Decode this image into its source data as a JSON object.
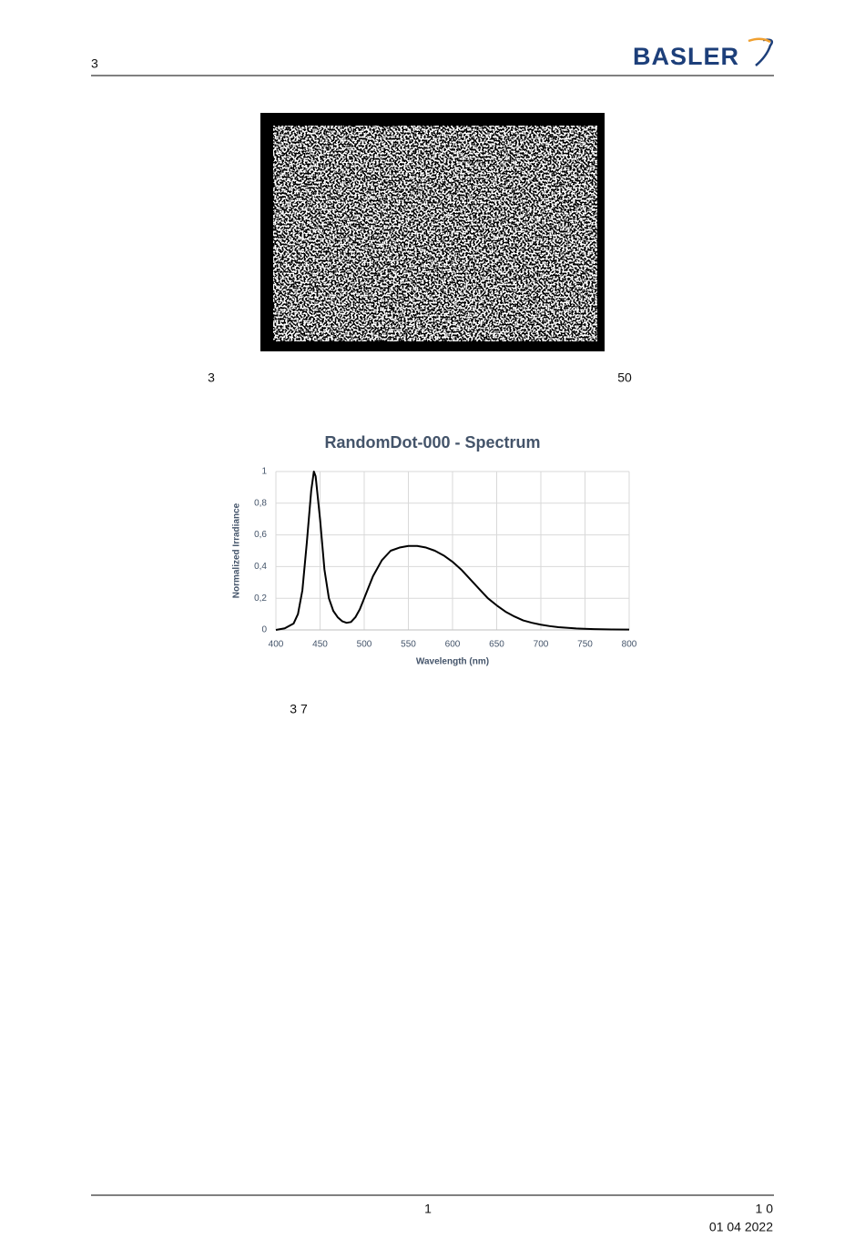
{
  "header": {
    "section": "3",
    "logo": "BASLER"
  },
  "figure1": {
    "caption_left": "3",
    "caption_right": "50"
  },
  "chart_data": {
    "type": "line",
    "title": "RandomDot-000 - Spectrum",
    "x_label": "Wavelength (nm)",
    "y_label": "Normalized Irradiance",
    "x": [
      400,
      410,
      420,
      425,
      430,
      435,
      440,
      443,
      445,
      450,
      455,
      460,
      465,
      470,
      475,
      480,
      485,
      490,
      495,
      500,
      510,
      520,
      530,
      540,
      550,
      560,
      570,
      580,
      590,
      600,
      610,
      620,
      630,
      640,
      650,
      660,
      670,
      680,
      690,
      700,
      710,
      720,
      740,
      760,
      780,
      800
    ],
    "series": [
      {
        "name": "Spectrum",
        "color": "#000000",
        "values": [
          0,
          0.01,
          0.04,
          0.1,
          0.25,
          0.55,
          0.88,
          1.0,
          0.97,
          0.7,
          0.38,
          0.2,
          0.12,
          0.08,
          0.055,
          0.045,
          0.05,
          0.08,
          0.13,
          0.2,
          0.34,
          0.44,
          0.5,
          0.52,
          0.53,
          0.53,
          0.52,
          0.5,
          0.47,
          0.43,
          0.38,
          0.32,
          0.26,
          0.2,
          0.155,
          0.115,
          0.085,
          0.06,
          0.045,
          0.033,
          0.024,
          0.017,
          0.009,
          0.005,
          0.003,
          0.002
        ]
      }
    ],
    "xlim": [
      400,
      800
    ],
    "xticks": [
      400,
      450,
      500,
      550,
      600,
      650,
      700,
      750,
      800
    ],
    "ylim": [
      0,
      1
    ],
    "yticks": [
      0,
      {
        "value": 0.2,
        "label": "0,2"
      },
      {
        "value": 0.4,
        "label": "0,4"
      },
      {
        "value": 0.6,
        "label": "0,6"
      },
      {
        "value": 0.8,
        "label": "0,8"
      },
      1
    ],
    "grid": true
  },
  "figure2": {
    "caption": "3 7"
  },
  "footer": {
    "page": "1",
    "right": "1 0",
    "date": "01 04 2022"
  }
}
